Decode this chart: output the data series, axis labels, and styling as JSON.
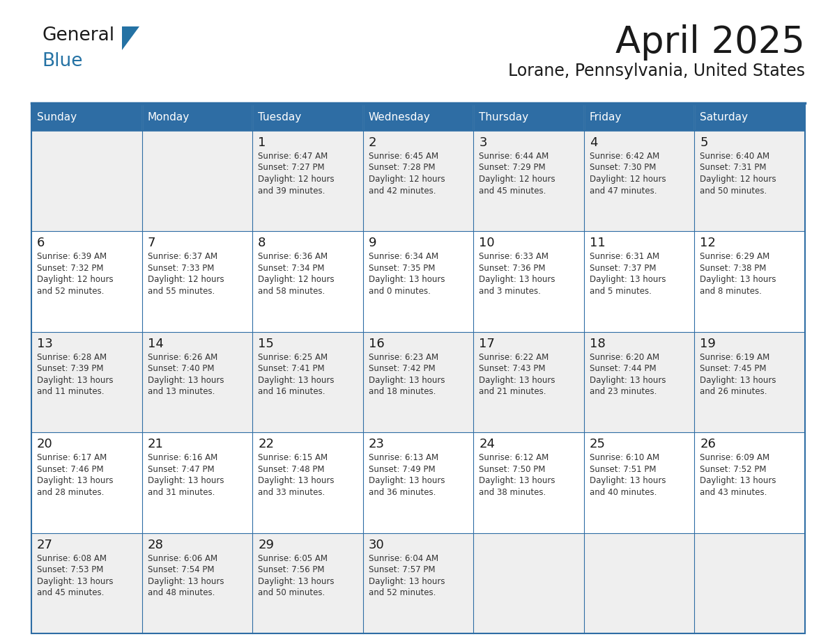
{
  "title": "April 2025",
  "subtitle": "Lorane, Pennsylvania, United States",
  "header_bg_color": "#2E6DA4",
  "header_text_color": "#FFFFFF",
  "border_color": "#2E6DA4",
  "day_names": [
    "Sunday",
    "Monday",
    "Tuesday",
    "Wednesday",
    "Thursday",
    "Friday",
    "Saturday"
  ],
  "title_color": "#1A1A1A",
  "subtitle_color": "#1A1A1A",
  "cell_text_color": "#333333",
  "day_number_color": "#1A1A1A",
  "row_colors": [
    "#EFEFEF",
    "#FFFFFF",
    "#EFEFEF",
    "#FFFFFF",
    "#EFEFEF"
  ],
  "calendar": [
    [
      {
        "day": "",
        "sunrise": "",
        "sunset": "",
        "daylight": ""
      },
      {
        "day": "",
        "sunrise": "",
        "sunset": "",
        "daylight": ""
      },
      {
        "day": "1",
        "sunrise": "6:47 AM",
        "sunset": "7:27 PM",
        "daylight": "12 hours and 39 minutes."
      },
      {
        "day": "2",
        "sunrise": "6:45 AM",
        "sunset": "7:28 PM",
        "daylight": "12 hours and 42 minutes."
      },
      {
        "day": "3",
        "sunrise": "6:44 AM",
        "sunset": "7:29 PM",
        "daylight": "12 hours and 45 minutes."
      },
      {
        "day": "4",
        "sunrise": "6:42 AM",
        "sunset": "7:30 PM",
        "daylight": "12 hours and 47 minutes."
      },
      {
        "day": "5",
        "sunrise": "6:40 AM",
        "sunset": "7:31 PM",
        "daylight": "12 hours and 50 minutes."
      }
    ],
    [
      {
        "day": "6",
        "sunrise": "6:39 AM",
        "sunset": "7:32 PM",
        "daylight": "12 hours and 52 minutes."
      },
      {
        "day": "7",
        "sunrise": "6:37 AM",
        "sunset": "7:33 PM",
        "daylight": "12 hours and 55 minutes."
      },
      {
        "day": "8",
        "sunrise": "6:36 AM",
        "sunset": "7:34 PM",
        "daylight": "12 hours and 58 minutes."
      },
      {
        "day": "9",
        "sunrise": "6:34 AM",
        "sunset": "7:35 PM",
        "daylight": "13 hours and 0 minutes."
      },
      {
        "day": "10",
        "sunrise": "6:33 AM",
        "sunset": "7:36 PM",
        "daylight": "13 hours and 3 minutes."
      },
      {
        "day": "11",
        "sunrise": "6:31 AM",
        "sunset": "7:37 PM",
        "daylight": "13 hours and 5 minutes."
      },
      {
        "day": "12",
        "sunrise": "6:29 AM",
        "sunset": "7:38 PM",
        "daylight": "13 hours and 8 minutes."
      }
    ],
    [
      {
        "day": "13",
        "sunrise": "6:28 AM",
        "sunset": "7:39 PM",
        "daylight": "13 hours and 11 minutes."
      },
      {
        "day": "14",
        "sunrise": "6:26 AM",
        "sunset": "7:40 PM",
        "daylight": "13 hours and 13 minutes."
      },
      {
        "day": "15",
        "sunrise": "6:25 AM",
        "sunset": "7:41 PM",
        "daylight": "13 hours and 16 minutes."
      },
      {
        "day": "16",
        "sunrise": "6:23 AM",
        "sunset": "7:42 PM",
        "daylight": "13 hours and 18 minutes."
      },
      {
        "day": "17",
        "sunrise": "6:22 AM",
        "sunset": "7:43 PM",
        "daylight": "13 hours and 21 minutes."
      },
      {
        "day": "18",
        "sunrise": "6:20 AM",
        "sunset": "7:44 PM",
        "daylight": "13 hours and 23 minutes."
      },
      {
        "day": "19",
        "sunrise": "6:19 AM",
        "sunset": "7:45 PM",
        "daylight": "13 hours and 26 minutes."
      }
    ],
    [
      {
        "day": "20",
        "sunrise": "6:17 AM",
        "sunset": "7:46 PM",
        "daylight": "13 hours and 28 minutes."
      },
      {
        "day": "21",
        "sunrise": "6:16 AM",
        "sunset": "7:47 PM",
        "daylight": "13 hours and 31 minutes."
      },
      {
        "day": "22",
        "sunrise": "6:15 AM",
        "sunset": "7:48 PM",
        "daylight": "13 hours and 33 minutes."
      },
      {
        "day": "23",
        "sunrise": "6:13 AM",
        "sunset": "7:49 PM",
        "daylight": "13 hours and 36 minutes."
      },
      {
        "day": "24",
        "sunrise": "6:12 AM",
        "sunset": "7:50 PM",
        "daylight": "13 hours and 38 minutes."
      },
      {
        "day": "25",
        "sunrise": "6:10 AM",
        "sunset": "7:51 PM",
        "daylight": "13 hours and 40 minutes."
      },
      {
        "day": "26",
        "sunrise": "6:09 AM",
        "sunset": "7:52 PM",
        "daylight": "13 hours and 43 minutes."
      }
    ],
    [
      {
        "day": "27",
        "sunrise": "6:08 AM",
        "sunset": "7:53 PM",
        "daylight": "13 hours and 45 minutes."
      },
      {
        "day": "28",
        "sunrise": "6:06 AM",
        "sunset": "7:54 PM",
        "daylight": "13 hours and 48 minutes."
      },
      {
        "day": "29",
        "sunrise": "6:05 AM",
        "sunset": "7:56 PM",
        "daylight": "13 hours and 50 minutes."
      },
      {
        "day": "30",
        "sunrise": "6:04 AM",
        "sunset": "7:57 PM",
        "daylight": "13 hours and 52 minutes."
      },
      {
        "day": "",
        "sunrise": "",
        "sunset": "",
        "daylight": ""
      },
      {
        "day": "",
        "sunrise": "",
        "sunset": "",
        "daylight": ""
      },
      {
        "day": "",
        "sunrise": "",
        "sunset": "",
        "daylight": ""
      }
    ]
  ]
}
